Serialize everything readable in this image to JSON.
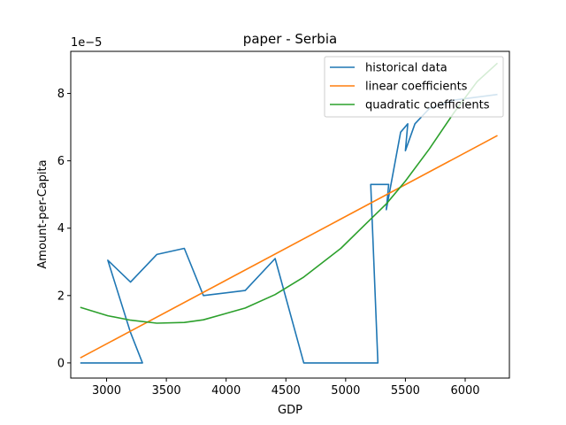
{
  "chart_data": {
    "type": "line",
    "title": "paper - Serbia",
    "xlabel": "GDP",
    "ylabel": "Amount-per-Capita",
    "y_offset_label": "1e−5",
    "xlim": [
      2700,
      6370
    ],
    "ylim": [
      -0.45,
      9.25
    ],
    "xticks": [
      3000,
      3500,
      4000,
      4500,
      5000,
      5500,
      6000
    ],
    "xtick_labels": [
      "3000",
      "3500",
      "4000",
      "4500",
      "5000",
      "5500",
      "6000"
    ],
    "yticks": [
      0,
      2,
      4,
      6,
      8
    ],
    "ytick_labels": [
      "0",
      "2",
      "4",
      "6",
      "8"
    ],
    "grid": false,
    "legend_position": "top-right",
    "series": [
      {
        "name": "historical data",
        "color": "#1f77b4",
        "x": [
          2780,
          3300,
          3200,
          3010,
          3200,
          3420,
          3650,
          3810,
          4160,
          4410,
          4650,
          5270,
          5210,
          5360,
          5340,
          5460,
          5520,
          5500,
          5580,
          5700,
          5900,
          6270
        ],
        "y": [
          0,
          0,
          0.9,
          3.05,
          2.4,
          3.22,
          3.4,
          2.0,
          2.15,
          3.1,
          0,
          0,
          5.3,
          5.3,
          4.55,
          6.85,
          7.1,
          6.3,
          7.1,
          7.55,
          7.8,
          7.97
        ]
      },
      {
        "name": "linear coefficients",
        "color": "#ff7f0e",
        "x": [
          2780,
          6270
        ],
        "y": [
          0.15,
          6.75
        ]
      },
      {
        "name": "quadratic coefficients",
        "color": "#2ca02c",
        "x": [
          2780,
          3010,
          3200,
          3420,
          3650,
          3810,
          4160,
          4410,
          4650,
          4960,
          5210,
          5340,
          5500,
          5700,
          5900,
          6100,
          6270
        ],
        "y": [
          1.65,
          1.4,
          1.27,
          1.18,
          1.2,
          1.28,
          1.63,
          2.03,
          2.55,
          3.4,
          4.27,
          4.72,
          5.4,
          6.35,
          7.4,
          8.35,
          8.9
        ]
      }
    ]
  }
}
